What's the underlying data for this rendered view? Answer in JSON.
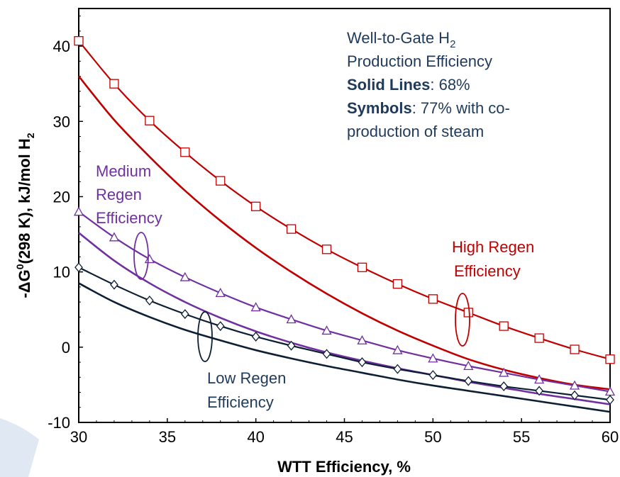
{
  "chart_data": {
    "type": "line",
    "xlabel": "WTT Efficiency, %",
    "ylabel_parts": [
      "-",
      "ΔG",
      "0",
      "(298 K), kJ/mol H",
      "2"
    ],
    "xlim": [
      30,
      60
    ],
    "ylim": [
      -10,
      45
    ],
    "xticks": [
      30,
      35,
      40,
      45,
      50,
      55,
      60
    ],
    "yticks": [
      -10,
      0,
      10,
      20,
      30,
      40
    ],
    "grid": false,
    "series": [
      {
        "group": "high",
        "style": "line",
        "color": "#c00000",
        "x": [
          30,
          32,
          34,
          36,
          38,
          40,
          42,
          44,
          46,
          48,
          50,
          52,
          54,
          56,
          58,
          60
        ],
        "y": [
          36.0,
          30.2,
          25.3,
          20.8,
          16.8,
          13.2,
          10.0,
          7.1,
          4.5,
          2.2,
          0.2,
          -1.6,
          -3.0,
          -4.1,
          -5.0,
          -5.6
        ]
      },
      {
        "group": "high",
        "style": "square",
        "color": "#c00000",
        "x": [
          30,
          32,
          34,
          36,
          38,
          40,
          42,
          44,
          46,
          48,
          50,
          52,
          54,
          56,
          58,
          60
        ],
        "y": [
          40.7,
          35.0,
          30.1,
          25.9,
          22.1,
          18.7,
          15.7,
          13.0,
          10.6,
          8.4,
          6.4,
          4.6,
          2.8,
          1.2,
          -0.3,
          -1.6
        ]
      },
      {
        "group": "medium",
        "style": "line",
        "color": "#7030a0",
        "x": [
          30,
          32,
          34,
          36,
          38,
          40,
          42,
          44,
          46,
          48,
          50,
          52,
          54,
          56,
          58,
          60
        ],
        "y": [
          15.2,
          11.5,
          8.5,
          6.0,
          3.9,
          2.1,
          0.6,
          -0.7,
          -1.8,
          -2.8,
          -3.7,
          -4.6,
          -5.4,
          -6.2,
          -6.9,
          -7.6
        ]
      },
      {
        "group": "medium",
        "style": "triangle",
        "color": "#7030a0",
        "x": [
          30,
          32,
          34,
          36,
          38,
          40,
          42,
          44,
          46,
          48,
          50,
          52,
          54,
          56,
          58,
          60
        ],
        "y": [
          18.0,
          14.6,
          11.7,
          9.3,
          7.2,
          5.3,
          3.7,
          2.2,
          0.9,
          -0.4,
          -1.5,
          -2.5,
          -3.4,
          -4.3,
          -5.1,
          -5.9
        ]
      },
      {
        "group": "low",
        "style": "line",
        "color": "#0d1f33",
        "x": [
          30,
          32,
          34,
          36,
          38,
          40,
          42,
          44,
          46,
          48,
          50,
          52,
          54,
          56,
          58,
          60
        ],
        "y": [
          8.5,
          6.0,
          4.0,
          2.3,
          0.9,
          -0.4,
          -1.5,
          -2.5,
          -3.4,
          -4.3,
          -5.1,
          -5.8,
          -6.5,
          -7.2,
          -7.9,
          -8.6
        ]
      },
      {
        "group": "low",
        "style": "diamond",
        "color": "#0d1f33",
        "x": [
          30,
          32,
          34,
          36,
          38,
          40,
          42,
          44,
          46,
          48,
          50,
          52,
          54,
          56,
          58,
          60
        ],
        "y": [
          10.6,
          8.3,
          6.2,
          4.4,
          2.8,
          1.4,
          0.2,
          -0.9,
          -2.0,
          -2.9,
          -3.7,
          -4.5,
          -5.2,
          -5.8,
          -6.4,
          -7.0
        ]
      }
    ],
    "annotations": {
      "box_title_main": "Well-to-Gate H",
      "box_title_sub": "2",
      "box_line2": "Production Efficiency",
      "solid_label": "Solid Lines",
      "solid_value": ": 68%",
      "symbols_label": "Symbols",
      "symbols_value": ": 77% with co-",
      "symbols_value2": "production of steam",
      "high_line1": "High Regen",
      "high_line2": "Efficiency",
      "medium_line1": "Medium",
      "medium_line2": "Regen",
      "medium_line3": "Efficiency",
      "low_line1": "Low Regen",
      "low_line2": "Efficiency"
    },
    "colors": {
      "high": "#c00000",
      "medium": "#7030a0",
      "low": "#1f3a5a",
      "text_box": "#1f3a5a"
    }
  }
}
